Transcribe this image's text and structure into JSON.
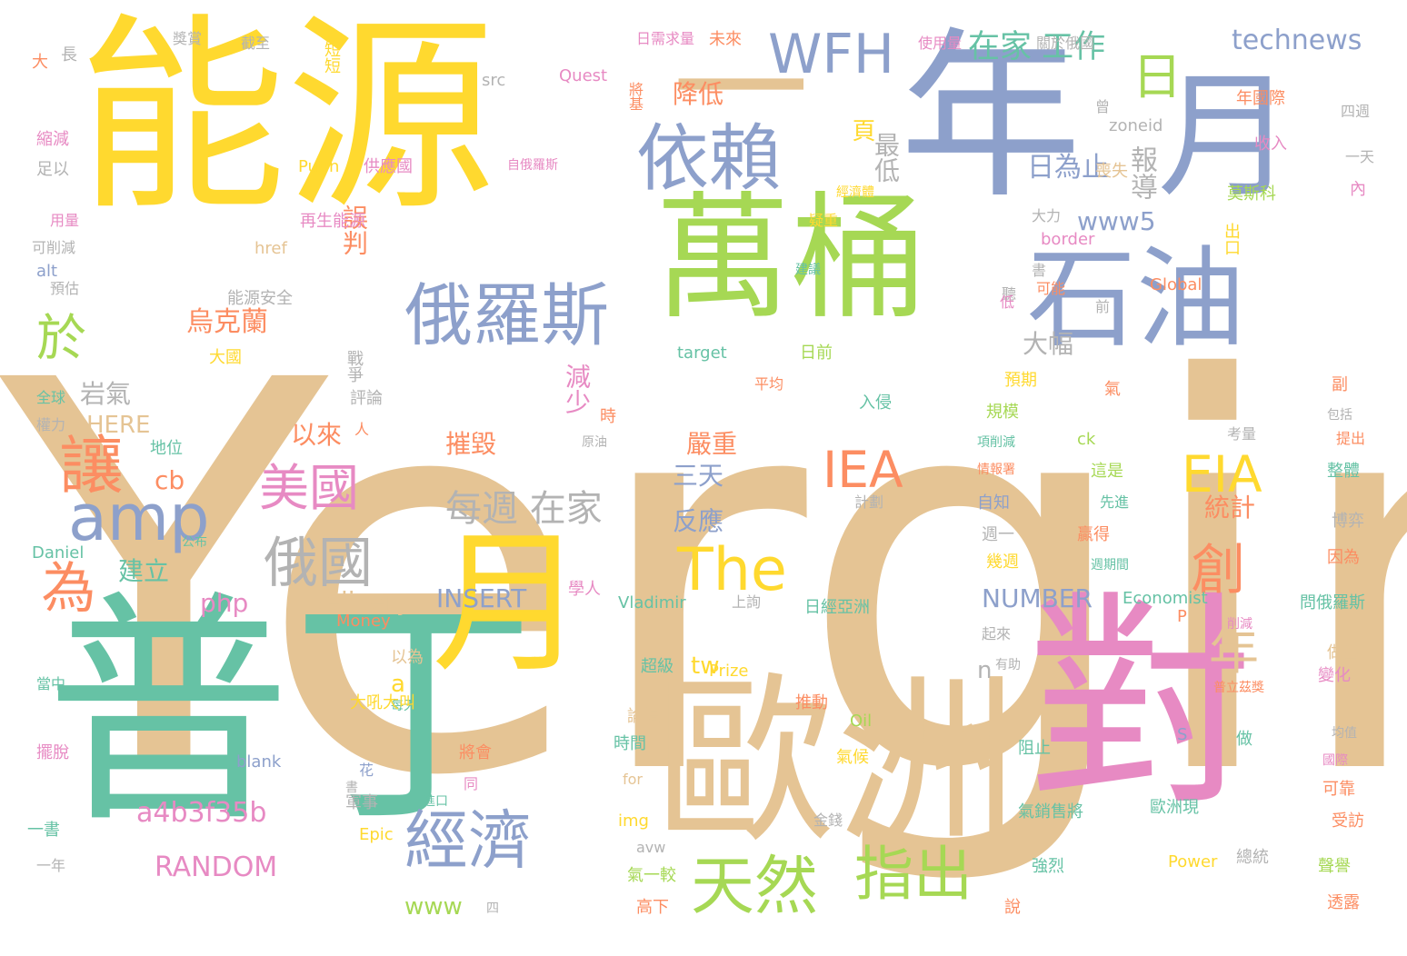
{
  "palette": {
    "tan": "#E5C494",
    "green": "#66C2A5",
    "blue": "#8DA0CB",
    "pink": "#E78AC3",
    "yellow": "#FFD92F",
    "lime": "#A6D854",
    "orange": "#FC8D62",
    "gray": "#B3B3B3"
  },
  "words": [
    {
      "text": "Yergin"
    },
    {
      "text": "能源"
    },
    {
      "text": "年"
    },
    {
      "text": "月"
    },
    {
      "text": "萬桶"
    },
    {
      "text": "石油"
    },
    {
      "text": "普丁"
    },
    {
      "text": "對"
    },
    {
      "text": "歐洲"
    },
    {
      "text": "一"
    },
    {
      "text": "月"
    },
    {
      "text": "依賴"
    },
    {
      "text": "俄羅斯"
    },
    {
      "text": "WFH"
    },
    {
      "text": "日"
    },
    {
      "text": "於"
    },
    {
      "text": "讓"
    },
    {
      "text": "amp"
    },
    {
      "text": "美國"
    },
    {
      "text": "俄國"
    },
    {
      "text": "為"
    },
    {
      "text": "經濟"
    },
    {
      "text": "天然"
    },
    {
      "text": "指出"
    },
    {
      "text": "IEA"
    },
    {
      "text": "EIA"
    },
    {
      "text": "The"
    },
    {
      "text": "年"
    },
    {
      "text": "創"
    },
    {
      "text": "每週 在家"
    },
    {
      "text": "在家 工作"
    },
    {
      "text": "technews"
    },
    {
      "text": "a4b3f35b"
    },
    {
      "text": "RANDOM"
    },
    {
      "text": "INSERT"
    },
    {
      "text": "NUMBER"
    },
    {
      "text": "delivery"
    },
    {
      "text": "php"
    },
    {
      "text": "降低"
    },
    {
      "text": "誤判"
    },
    {
      "text": "最低"
    },
    {
      "text": "日為止"
    },
    {
      "text": "報導"
    },
    {
      "text": "www5"
    },
    {
      "text": "烏克蘭"
    },
    {
      "text": "大幅"
    },
    {
      "text": "岩氣"
    },
    {
      "text": "HERE"
    },
    {
      "text": "cb"
    },
    {
      "text": "以來"
    },
    {
      "text": "摧毀"
    },
    {
      "text": "嚴重"
    },
    {
      "text": "三天"
    },
    {
      "text": "反應"
    },
    {
      "text": "減少"
    },
    {
      "text": "建立"
    },
    {
      "text": "統計"
    },
    {
      "text": "頁"
    },
    {
      "text": "tw"
    },
    {
      "text": "a"
    },
    {
      "text": "n"
    },
    {
      "text": "www"
    },
    {
      "text": "Quest"
    },
    {
      "text": "src"
    },
    {
      "text": "短短"
    },
    {
      "text": "Putin"
    },
    {
      "text": "供應國"
    },
    {
      "text": "再生能源"
    },
    {
      "text": "href"
    },
    {
      "text": "能源安全"
    },
    {
      "text": "alt"
    },
    {
      "text": "縮減"
    },
    {
      "text": "足以"
    },
    {
      "text": "用量"
    },
    {
      "text": "可削減"
    },
    {
      "text": "預估"
    },
    {
      "text": "大"
    },
    {
      "text": "長"
    },
    {
      "text": "獎賞"
    },
    {
      "text": "截至"
    },
    {
      "text": "日需求量"
    },
    {
      "text": "未來"
    },
    {
      "text": "將基"
    },
    {
      "text": "使用量"
    },
    {
      "text": "關於俄國"
    },
    {
      "text": "年國際"
    },
    {
      "text": "四週"
    },
    {
      "text": "收入"
    },
    {
      "text": "一天"
    },
    {
      "text": "喪失"
    },
    {
      "text": "莫斯科"
    },
    {
      "text": "內"
    },
    {
      "text": "zoneid"
    },
    {
      "text": "border"
    },
    {
      "text": "Global"
    },
    {
      "text": "出口"
    },
    {
      "text": "大力"
    },
    {
      "text": "可能"
    },
    {
      "text": "聽"
    },
    {
      "text": "低"
    },
    {
      "text": "前"
    },
    {
      "text": "target"
    },
    {
      "text": "日前"
    },
    {
      "text": "大國"
    },
    {
      "text": "戰爭"
    },
    {
      "text": "全球"
    },
    {
      "text": "權力"
    },
    {
      "text": "評論"
    },
    {
      "text": "地位"
    },
    {
      "text": "預期"
    },
    {
      "text": "規模"
    },
    {
      "text": "平均"
    },
    {
      "text": "入侵"
    },
    {
      "text": "項削減"
    },
    {
      "text": "情報署"
    },
    {
      "text": "ck"
    },
    {
      "text": "這是"
    },
    {
      "text": "先進"
    },
    {
      "text": "贏得"
    },
    {
      "text": "週期間"
    },
    {
      "text": "問俄羅斯"
    },
    {
      "text": "因為"
    },
    {
      "text": "博弈"
    },
    {
      "text": "整體"
    },
    {
      "text": "提出"
    },
    {
      "text": "包括"
    },
    {
      "text": "考量"
    },
    {
      "text": "副"
    },
    {
      "text": "氣"
    },
    {
      "text": "時"
    },
    {
      "text": "原油"
    },
    {
      "text": "自知"
    },
    {
      "text": "計劃"
    },
    {
      "text": "週一"
    },
    {
      "text": "幾週"
    },
    {
      "text": "Daniel"
    },
    {
      "text": "公布"
    },
    {
      "text": "學人"
    },
    {
      "text": "Vladimir"
    },
    {
      "text": "上詢"
    },
    {
      "text": "日經亞洲"
    },
    {
      "text": "Economist"
    },
    {
      "text": "Money"
    },
    {
      "text": "以為"
    },
    {
      "text": "當中"
    },
    {
      "text": "每天"
    },
    {
      "text": "大吼大叫"
    },
    {
      "text": "超級"
    },
    {
      "text": "Prize"
    },
    {
      "text": "有助"
    },
    {
      "text": "做出"
    },
    {
      "text": "變化"
    },
    {
      "text": "普立茲獎"
    },
    {
      "text": "推動"
    },
    {
      "text": "論壇"
    },
    {
      "text": "時間"
    },
    {
      "text": "將會"
    },
    {
      "text": "blank"
    },
    {
      "text": "擺脫"
    },
    {
      "text": "花"
    },
    {
      "text": "Oil"
    },
    {
      "text": "for"
    },
    {
      "text": "氣候"
    },
    {
      "text": "阻止"
    },
    {
      "text": "做"
    },
    {
      "text": "國際"
    },
    {
      "text": "均值"
    },
    {
      "text": "可靠"
    },
    {
      "text": "受訪"
    },
    {
      "text": "一書"
    },
    {
      "text": "一年"
    },
    {
      "text": "進口"
    },
    {
      "text": "Epic"
    },
    {
      "text": "軍事"
    },
    {
      "text": "img"
    },
    {
      "text": "金錢"
    },
    {
      "text": "氣銷售將"
    },
    {
      "text": "歐洲現"
    },
    {
      "text": "avw"
    },
    {
      "text": "強烈"
    },
    {
      "text": "總統"
    },
    {
      "text": "Power"
    },
    {
      "text": "聲譽"
    },
    {
      "text": "氣一較"
    },
    {
      "text": "高下"
    },
    {
      "text": "說"
    },
    {
      "text": "透露"
    },
    {
      "text": "四"
    },
    {
      "text": "S"
    },
    {
      "text": "P"
    },
    {
      "text": "削減"
    },
    {
      "text": "經濟體"
    },
    {
      "text": "疑重"
    },
    {
      "text": "建議"
    },
    {
      "text": "自俄羅斯"
    },
    {
      "text": "曾"
    },
    {
      "text": "起來"
    },
    {
      "text": "同"
    },
    {
      "text": "書"
    },
    {
      "text": "人"
    },
    {
      "text": "書"
    }
  ]
}
